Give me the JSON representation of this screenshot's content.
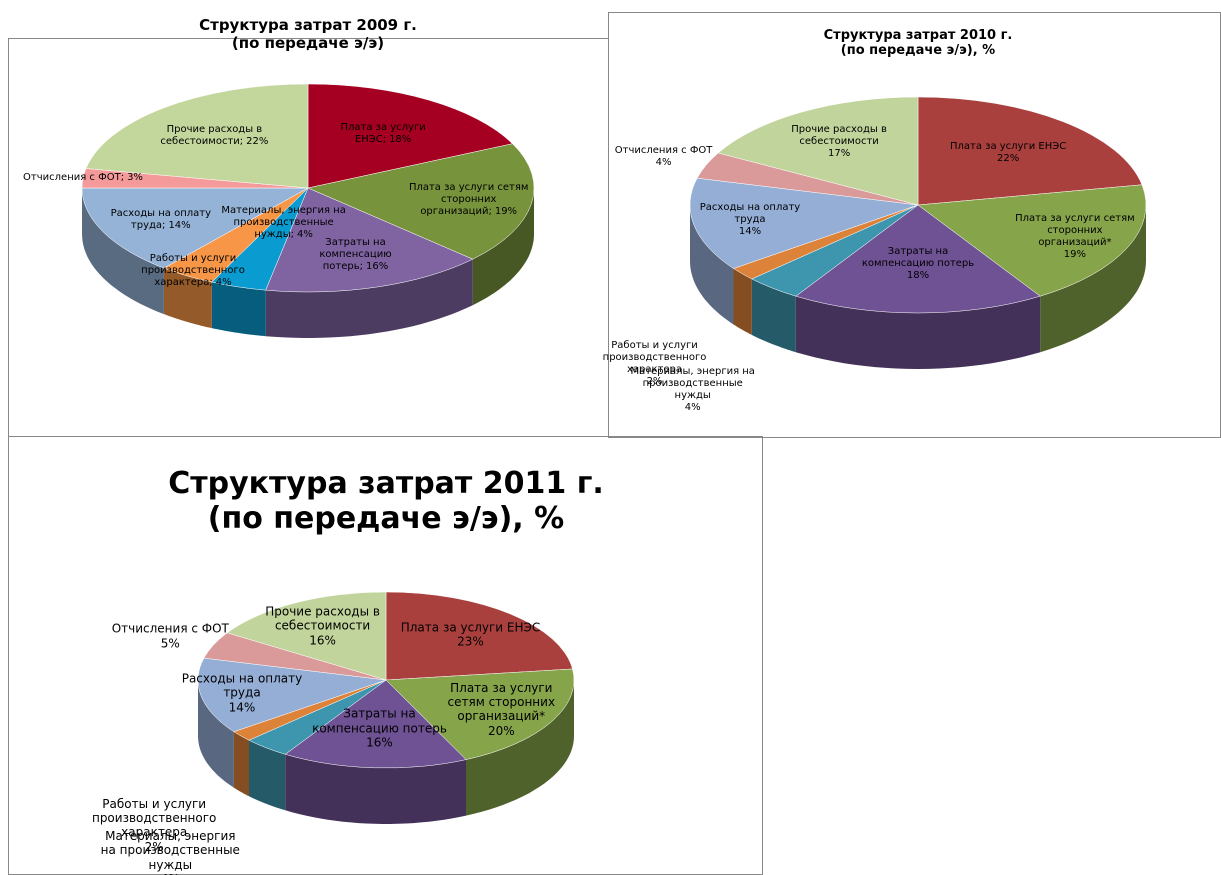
{
  "chart_data": [
    {
      "type": "pie",
      "title": "Структура затрат 2009 г.\n(по передаче э/э)",
      "categories": [
        "Плата за услуги ЕНЭС;",
        "Плата за услуги сетям сторонних организаций;",
        "Затраты на компенсацию потерь;",
        "Материалы, энергия на производственные нужды;",
        "Работы и услуги производственного характера;",
        "Расходы на оплату труда;",
        "Отчисления с ФОТ;",
        "Прочие расходы в себестоимости;"
      ],
      "values": [
        18,
        19,
        16,
        4,
        4,
        14,
        3,
        22
      ],
      "value_labels": [
        "18%",
        "19%",
        "16%",
        "4%",
        "4%",
        "14%",
        "3%",
        "22%"
      ],
      "colors": [
        "#a50021",
        "#77933c",
        "#8064a2",
        "#0a9bd0",
        "#f79646",
        "#95b3d7",
        "#f59a9a",
        "#c3d69b"
      ]
    },
    {
      "type": "pie",
      "title": "Структура затрат 2010 г.\n(по передаче э/э), %",
      "categories": [
        "Плата за услуги ЕНЭС",
        "Плата за услуги сетям сторонних организаций*",
        "Затраты на компенсацию потерь",
        "Материалы, энергия на производственные нужды",
        "Работы и услуги производственного характера",
        "Расходы на оплату труда",
        "Отчисления с ФОТ",
        "Прочие расходы в себестоимости"
      ],
      "values": [
        22,
        19,
        18,
        4,
        2,
        14,
        4,
        17
      ],
      "value_labels": [
        "22%",
        "19%",
        "18%",
        "4%",
        "2%",
        "14%",
        "4%",
        "17%"
      ],
      "colors": [
        "#a9403e",
        "#86a44a",
        "#6f5294",
        "#3d96ae",
        "#dc8239",
        "#94aed6",
        "#d99a99",
        "#c1d49b"
      ]
    },
    {
      "type": "pie",
      "title": "Структура затрат 2011 г.\n(по передаче э/э), %",
      "categories": [
        "Плата за услуги ЕНЭС",
        "Плата за услуги сетям сторонних организаций*",
        "Затраты на компенсацию потерь",
        "Материалы, энергия на производственные нужды",
        "Работы и услуги производственного характера",
        "Расходы на оплату труда",
        "Отчисления с ФОТ",
        "Прочие расходы в себестоимости"
      ],
      "values": [
        23,
        20,
        16,
        4,
        2,
        14,
        5,
        16
      ],
      "value_labels": [
        "23%",
        "20%",
        "16%",
        "4%",
        "2%",
        "14%",
        "5%",
        "16%"
      ],
      "colors": [
        "#a9403e",
        "#86a44a",
        "#6f5294",
        "#3d96ae",
        "#dc8239",
        "#94aed6",
        "#d99a99",
        "#c1d49b"
      ]
    }
  ]
}
